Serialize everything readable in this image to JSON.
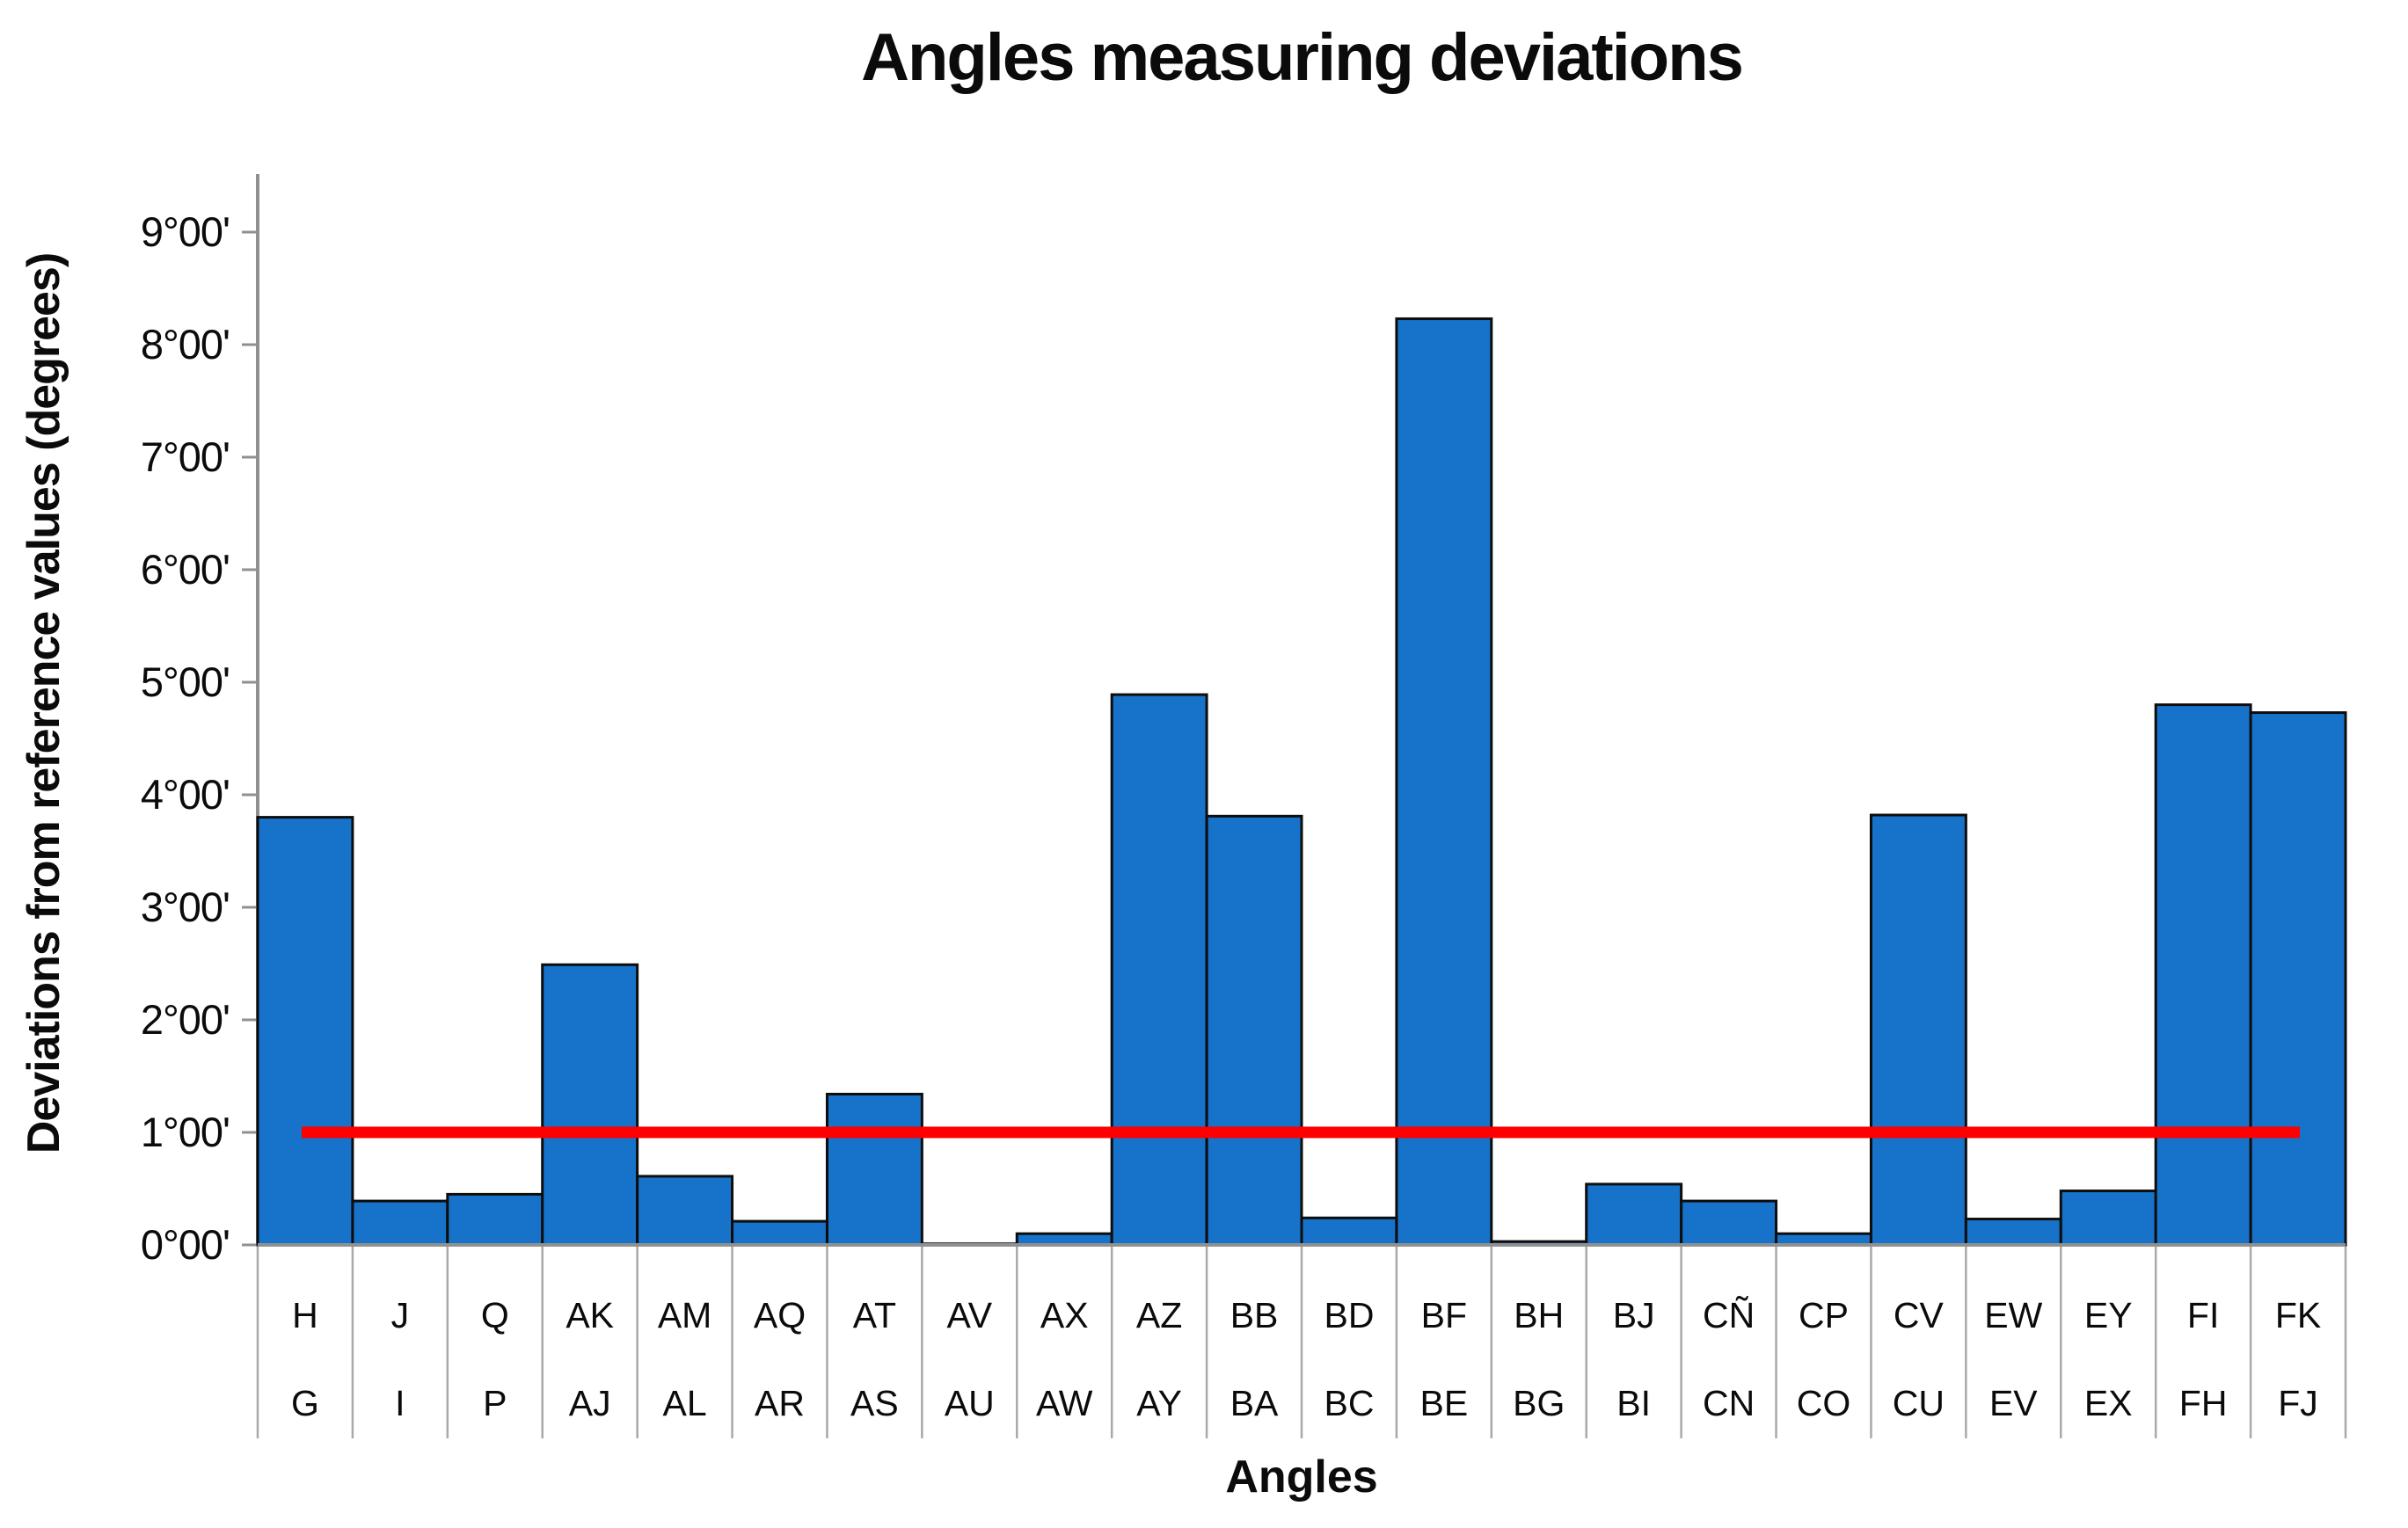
{
  "title": "Angles measuring deviations",
  "colors": {
    "bar_fill": "#1772C9",
    "bar_outline": "#0d0d0d",
    "reference_line": "#FE0000",
    "axis_line": "#909090",
    "category_divider": "#a9a9a9",
    "text": "#0b0b0b"
  },
  "chart_data": {
    "type": "bar",
    "title": "Angles measuring deviations",
    "xlabel": "Angles",
    "ylabel": "Deviations from reference values (degrees)",
    "grid": false,
    "legend": null,
    "ylim": [
      0,
      9.5
    ],
    "y_unit": "degrees (sexagesimal, °minutes')",
    "y_ticks": [
      "0°00'",
      "1°00'",
      "2°00'",
      "3°00'",
      "4°00'",
      "5°00'",
      "6°00'",
      "7°00'",
      "8°00'",
      "9°00'"
    ],
    "categories_top": [
      "H",
      "J",
      "Q",
      "AK",
      "AM",
      "AQ",
      "AT",
      "AV",
      "AX",
      "AZ",
      "BB",
      "BD",
      "BF",
      "BH",
      "BJ",
      "CÑ",
      "CP",
      "CV",
      "EW",
      "EY",
      "FI",
      "FK"
    ],
    "categories_bottom": [
      "G",
      "I",
      "P",
      "AJ",
      "AL",
      "AR",
      "AS",
      "AU",
      "AW",
      "AY",
      "BA",
      "BC",
      "BE",
      "BG",
      "BI",
      "CN",
      "CO",
      "CU",
      "EV",
      "EX",
      "FH",
      "FJ"
    ],
    "values_degrees": [
      3.8,
      0.39,
      0.45,
      2.49,
      0.61,
      0.21,
      1.34,
      0.01,
      0.1,
      4.89,
      3.81,
      0.24,
      8.23,
      0.03,
      0.54,
      0.39,
      0.1,
      3.82,
      0.23,
      0.48,
      4.8,
      4.73
    ],
    "values_dms": [
      "3°48'",
      "0°23'",
      "0°27'",
      "2°29'",
      "0°37'",
      "0°13'",
      "1°20'",
      "0°01'",
      "0°06'",
      "4°53'",
      "3°49'",
      "0°14'",
      "8°14'",
      "0°02'",
      "0°32'",
      "0°23'",
      "0°06'",
      "3°49'",
      "0°14'",
      "0°29'",
      "4°48'",
      "4°44'"
    ],
    "reference_line": {
      "value": 1.0,
      "label": "1°00'",
      "color": "#FE0000"
    }
  }
}
